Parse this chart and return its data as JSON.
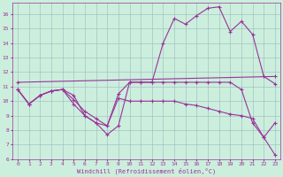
{
  "xlabel": "Windchill (Refroidissement éolien,°C)",
  "bg_color": "#cceedd",
  "grid_color": "#99bbbb",
  "line_color": "#993399",
  "xlim": [
    -0.5,
    23.5
  ],
  "ylim": [
    6,
    16.8
  ],
  "xticks": [
    0,
    1,
    2,
    3,
    4,
    5,
    6,
    7,
    8,
    9,
    10,
    11,
    12,
    13,
    14,
    15,
    16,
    17,
    18,
    19,
    20,
    21,
    22,
    23
  ],
  "yticks": [
    6,
    7,
    8,
    9,
    10,
    11,
    12,
    13,
    14,
    15,
    16
  ],
  "series": {
    "line1_x": [
      0,
      1,
      2,
      3,
      4,
      5,
      6,
      7,
      8,
      9,
      10,
      11,
      12,
      13,
      14,
      15,
      16,
      17,
      18,
      19,
      20,
      21,
      22,
      23
    ],
    "line1_y": [
      10.8,
      9.8,
      10.4,
      10.7,
      10.8,
      10.4,
      9.0,
      8.5,
      7.7,
      8.3,
      11.3,
      11.3,
      11.3,
      14.0,
      15.7,
      15.3,
      15.9,
      16.4,
      16.5,
      14.8,
      15.5,
      14.6,
      11.7,
      11.2
    ],
    "line2_x": [
      0,
      23
    ],
    "line2_y": [
      11.3,
      11.7
    ],
    "line3_x": [
      0,
      1,
      2,
      3,
      4,
      5,
      6,
      7,
      8,
      9,
      10,
      11,
      12,
      13,
      14,
      15,
      16,
      17,
      18,
      19,
      20,
      21,
      22,
      23
    ],
    "line3_y": [
      10.8,
      9.8,
      10.4,
      10.7,
      10.8,
      10.1,
      9.3,
      8.8,
      8.3,
      10.2,
      10.0,
      10.0,
      10.0,
      10.0,
      10.0,
      9.8,
      9.7,
      9.5,
      9.3,
      9.1,
      9.0,
      8.8,
      7.5,
      6.3
    ],
    "line4_x": [
      0,
      1,
      2,
      3,
      4,
      5,
      6,
      7,
      8,
      9,
      10,
      11,
      12,
      13,
      14,
      15,
      16,
      17,
      18,
      19,
      20,
      21,
      22,
      23
    ],
    "line4_y": [
      10.8,
      9.8,
      10.4,
      10.7,
      10.8,
      9.8,
      9.0,
      8.5,
      8.3,
      10.5,
      11.3,
      11.3,
      11.3,
      11.3,
      11.3,
      11.3,
      11.3,
      11.3,
      11.3,
      11.3,
      10.8,
      8.5,
      7.5,
      8.5
    ]
  }
}
